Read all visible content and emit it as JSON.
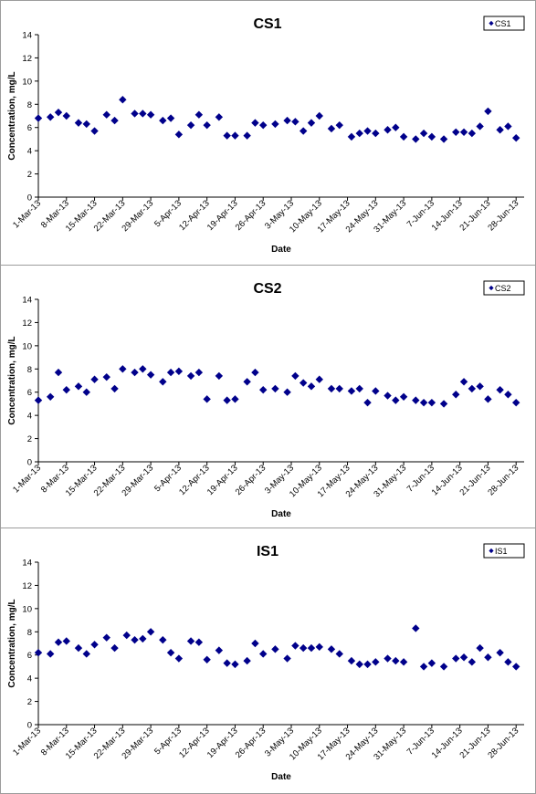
{
  "chart_data": [
    {
      "type": "scatter",
      "title": "CS1",
      "xlabel": "Date",
      "ylabel": "Concentration, mg/L",
      "ylim": [
        0,
        14
      ],
      "yticks": [
        0,
        2,
        4,
        6,
        8,
        10,
        12,
        14
      ],
      "xlim": [
        "2013-03-01",
        "2013-06-30"
      ],
      "xtick_labels": [
        "1-Mar-13",
        "8-Mar-13",
        "15-Mar-13",
        "22-Mar-13",
        "29-Mar-13",
        "5-Apr-13",
        "12-Apr-13",
        "19-Apr-13",
        "26-Apr-13",
        "3-May-13",
        "10-May-13",
        "17-May-13",
        "24-May-13",
        "31-May-13",
        "7-Jun-13",
        "14-Jun-13",
        "21-Jun-13",
        "28-Jun-13"
      ],
      "legend": "top-right",
      "color": "#00008B",
      "series": [
        {
          "name": "CS1",
          "points": [
            [
              "2013-03-01",
              6.8
            ],
            [
              "2013-03-04",
              6.9
            ],
            [
              "2013-03-06",
              7.3
            ],
            [
              "2013-03-08",
              7.0
            ],
            [
              "2013-03-11",
              6.4
            ],
            [
              "2013-03-13",
              6.3
            ],
            [
              "2013-03-15",
              5.7
            ],
            [
              "2013-03-18",
              7.1
            ],
            [
              "2013-03-20",
              6.6
            ],
            [
              "2013-03-22",
              8.4
            ],
            [
              "2013-03-25",
              7.2
            ],
            [
              "2013-03-27",
              7.2
            ],
            [
              "2013-03-29",
              7.1
            ],
            [
              "2013-04-01",
              6.6
            ],
            [
              "2013-04-03",
              6.8
            ],
            [
              "2013-04-05",
              5.4
            ],
            [
              "2013-04-08",
              6.2
            ],
            [
              "2013-04-10",
              7.1
            ],
            [
              "2013-04-12",
              6.2
            ],
            [
              "2013-04-15",
              6.9
            ],
            [
              "2013-04-17",
              5.3
            ],
            [
              "2013-04-19",
              5.3
            ],
            [
              "2013-04-22",
              5.3
            ],
            [
              "2013-04-24",
              6.4
            ],
            [
              "2013-04-26",
              6.2
            ],
            [
              "2013-04-29",
              6.3
            ],
            [
              "2013-05-02",
              6.6
            ],
            [
              "2013-05-04",
              6.5
            ],
            [
              "2013-05-06",
              5.7
            ],
            [
              "2013-05-08",
              6.4
            ],
            [
              "2013-05-10",
              7.0
            ],
            [
              "2013-05-13",
              5.9
            ],
            [
              "2013-05-15",
              6.2
            ],
            [
              "2013-05-18",
              5.2
            ],
            [
              "2013-05-20",
              5.5
            ],
            [
              "2013-05-22",
              5.7
            ],
            [
              "2013-05-24",
              5.5
            ],
            [
              "2013-05-27",
              5.8
            ],
            [
              "2013-05-29",
              6.0
            ],
            [
              "2013-05-31",
              5.2
            ],
            [
              "2013-06-03",
              5.0
            ],
            [
              "2013-06-05",
              5.5
            ],
            [
              "2013-06-07",
              5.2
            ],
            [
              "2013-06-10",
              5.0
            ],
            [
              "2013-06-13",
              5.6
            ],
            [
              "2013-06-15",
              5.6
            ],
            [
              "2013-06-17",
              5.5
            ],
            [
              "2013-06-19",
              6.1
            ],
            [
              "2013-06-21",
              7.4
            ],
            [
              "2013-06-24",
              5.8
            ],
            [
              "2013-06-26",
              6.1
            ],
            [
              "2013-06-28",
              5.1
            ]
          ]
        }
      ]
    },
    {
      "type": "scatter",
      "title": "CS2",
      "xlabel": "Date",
      "ylabel": "Concentration, mg/L",
      "ylim": [
        0,
        14
      ],
      "yticks": [
        0,
        2,
        4,
        6,
        8,
        10,
        12,
        14
      ],
      "xlim": [
        "2013-03-01",
        "2013-06-30"
      ],
      "xtick_labels": [
        "1-Mar-13",
        "8-Mar-13",
        "15-Mar-13",
        "22-Mar-13",
        "29-Mar-13",
        "5-Apr-13",
        "12-Apr-13",
        "19-Apr-13",
        "26-Apr-13",
        "3-May-13",
        "10-May-13",
        "17-May-13",
        "24-May-13",
        "31-May-13",
        "7-Jun-13",
        "14-Jun-13",
        "21-Jun-13",
        "28-Jun-13"
      ],
      "legend": "top-right",
      "color": "#00008B",
      "series": [
        {
          "name": "CS2",
          "points": [
            [
              "2013-03-01",
              5.3
            ],
            [
              "2013-03-04",
              5.6
            ],
            [
              "2013-03-06",
              7.7
            ],
            [
              "2013-03-08",
              6.2
            ],
            [
              "2013-03-11",
              6.5
            ],
            [
              "2013-03-13",
              6.0
            ],
            [
              "2013-03-15",
              7.1
            ],
            [
              "2013-03-18",
              7.3
            ],
            [
              "2013-03-20",
              6.3
            ],
            [
              "2013-03-22",
              8.0
            ],
            [
              "2013-03-25",
              7.7
            ],
            [
              "2013-03-27",
              8.0
            ],
            [
              "2013-03-29",
              7.5
            ],
            [
              "2013-04-01",
              6.9
            ],
            [
              "2013-04-03",
              7.7
            ],
            [
              "2013-04-05",
              7.8
            ],
            [
              "2013-04-08",
              7.4
            ],
            [
              "2013-04-10",
              7.7
            ],
            [
              "2013-04-12",
              5.4
            ],
            [
              "2013-04-15",
              7.4
            ],
            [
              "2013-04-17",
              5.3
            ],
            [
              "2013-04-19",
              5.4
            ],
            [
              "2013-04-22",
              6.9
            ],
            [
              "2013-04-24",
              7.7
            ],
            [
              "2013-04-26",
              6.2
            ],
            [
              "2013-04-29",
              6.3
            ],
            [
              "2013-05-02",
              6.0
            ],
            [
              "2013-05-04",
              7.4
            ],
            [
              "2013-05-06",
              6.8
            ],
            [
              "2013-05-08",
              6.5
            ],
            [
              "2013-05-10",
              7.1
            ],
            [
              "2013-05-13",
              6.3
            ],
            [
              "2013-05-15",
              6.3
            ],
            [
              "2013-05-18",
              6.1
            ],
            [
              "2013-05-20",
              6.3
            ],
            [
              "2013-05-22",
              5.1
            ],
            [
              "2013-05-24",
              6.1
            ],
            [
              "2013-05-27",
              5.7
            ],
            [
              "2013-05-29",
              5.3
            ],
            [
              "2013-05-31",
              5.6
            ],
            [
              "2013-06-03",
              5.3
            ],
            [
              "2013-06-05",
              5.1
            ],
            [
              "2013-06-07",
              5.1
            ],
            [
              "2013-06-10",
              5.0
            ],
            [
              "2013-06-13",
              5.8
            ],
            [
              "2013-06-15",
              6.9
            ],
            [
              "2013-06-17",
              6.3
            ],
            [
              "2013-06-19",
              6.5
            ],
            [
              "2013-06-21",
              5.4
            ],
            [
              "2013-06-24",
              6.2
            ],
            [
              "2013-06-26",
              5.8
            ],
            [
              "2013-06-28",
              5.1
            ]
          ]
        }
      ]
    },
    {
      "type": "scatter",
      "title": "IS1",
      "xlabel": "Date",
      "ylabel": "Concentration, mg/L",
      "ylim": [
        0,
        14
      ],
      "yticks": [
        0,
        2,
        4,
        6,
        8,
        10,
        12,
        14
      ],
      "xlim": [
        "2013-03-01",
        "2013-06-30"
      ],
      "xtick_labels": [
        "1-Mar-13",
        "8-Mar-13",
        "15-Mar-13",
        "22-Mar-13",
        "29-Mar-13",
        "5-Apr-13",
        "12-Apr-13",
        "19-Apr-13",
        "26-Apr-13",
        "3-May-13",
        "10-May-13",
        "17-May-13",
        "24-May-13",
        "31-May-13",
        "7-Jun-13",
        "14-Jun-13",
        "21-Jun-13",
        "28-Jun-13"
      ],
      "legend": "top-right",
      "color": "#00008B",
      "series": [
        {
          "name": "IS1",
          "points": [
            [
              "2013-03-01",
              6.2
            ],
            [
              "2013-03-04",
              6.1
            ],
            [
              "2013-03-06",
              7.1
            ],
            [
              "2013-03-08",
              7.2
            ],
            [
              "2013-03-11",
              6.6
            ],
            [
              "2013-03-13",
              6.1
            ],
            [
              "2013-03-15",
              6.9
            ],
            [
              "2013-03-18",
              7.5
            ],
            [
              "2013-03-20",
              6.6
            ],
            [
              "2013-03-23",
              7.7
            ],
            [
              "2013-03-25",
              7.3
            ],
            [
              "2013-03-27",
              7.4
            ],
            [
              "2013-03-29",
              8.0
            ],
            [
              "2013-04-01",
              7.3
            ],
            [
              "2013-04-03",
              6.2
            ],
            [
              "2013-04-05",
              5.7
            ],
            [
              "2013-04-08",
              7.2
            ],
            [
              "2013-04-10",
              7.1
            ],
            [
              "2013-04-12",
              5.6
            ],
            [
              "2013-04-15",
              6.4
            ],
            [
              "2013-04-17",
              5.3
            ],
            [
              "2013-04-19",
              5.2
            ],
            [
              "2013-04-22",
              5.5
            ],
            [
              "2013-04-24",
              7.0
            ],
            [
              "2013-04-26",
              6.1
            ],
            [
              "2013-04-29",
              6.5
            ],
            [
              "2013-05-02",
              5.7
            ],
            [
              "2013-05-04",
              6.8
            ],
            [
              "2013-05-06",
              6.6
            ],
            [
              "2013-05-08",
              6.6
            ],
            [
              "2013-05-10",
              6.7
            ],
            [
              "2013-05-13",
              6.5
            ],
            [
              "2013-05-15",
              6.1
            ],
            [
              "2013-05-18",
              5.5
            ],
            [
              "2013-05-20",
              5.2
            ],
            [
              "2013-05-22",
              5.2
            ],
            [
              "2013-05-24",
              5.4
            ],
            [
              "2013-05-27",
              5.7
            ],
            [
              "2013-05-29",
              5.5
            ],
            [
              "2013-05-31",
              5.4
            ],
            [
              "2013-06-03",
              8.3
            ],
            [
              "2013-06-05",
              5.0
            ],
            [
              "2013-06-07",
              5.3
            ],
            [
              "2013-06-10",
              5.0
            ],
            [
              "2013-06-13",
              5.7
            ],
            [
              "2013-06-15",
              5.8
            ],
            [
              "2013-06-17",
              5.4
            ],
            [
              "2013-06-19",
              6.6
            ],
            [
              "2013-06-21",
              5.8
            ],
            [
              "2013-06-24",
              6.2
            ],
            [
              "2013-06-26",
              5.4
            ],
            [
              "2013-06-28",
              5.0
            ]
          ]
        }
      ]
    }
  ]
}
